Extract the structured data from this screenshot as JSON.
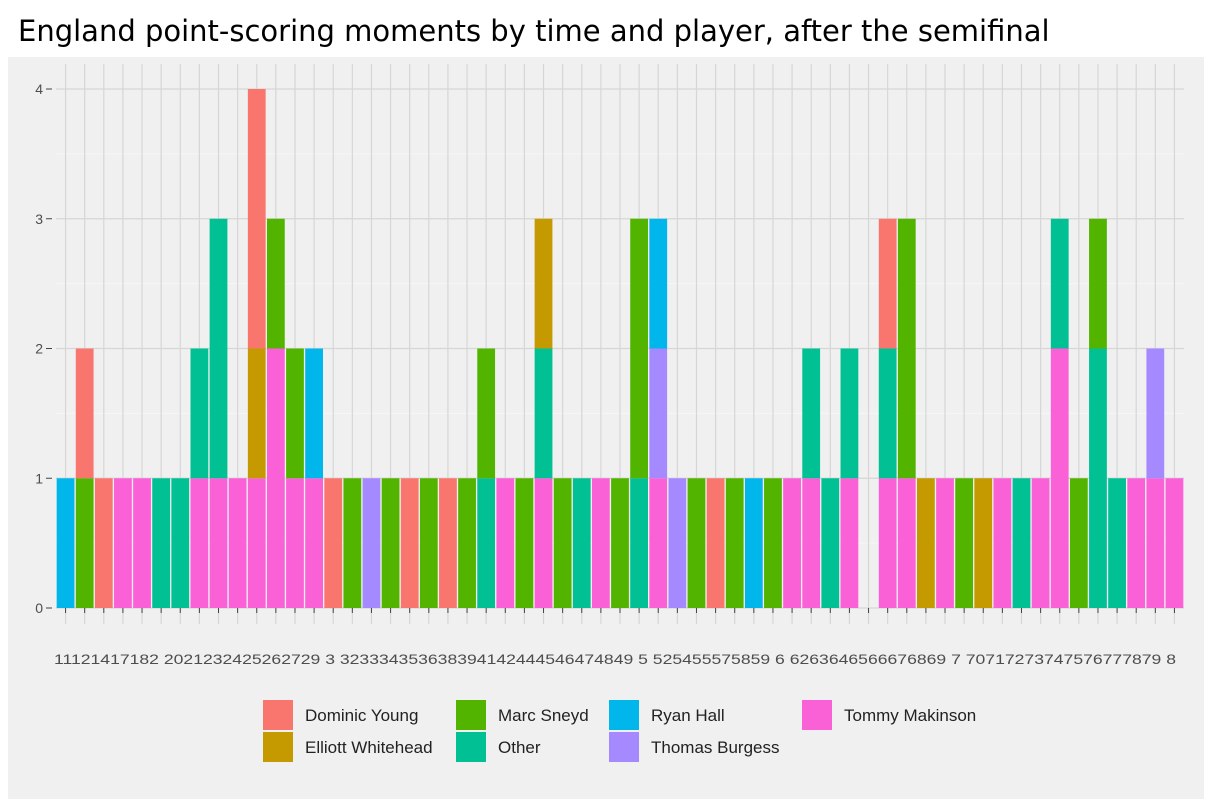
{
  "title": "England point-scoring moments by time and player, after the semifinal",
  "chart_data": {
    "type": "bar",
    "stacked": true,
    "title": "England point-scoring moments by time and player, after the semifinal",
    "xlabel": "",
    "ylabel": "",
    "ylim": [
      0,
      4
    ],
    "yticks": [
      0,
      1,
      2,
      3,
      4
    ],
    "grid": true,
    "legend_position": "bottom",
    "categories": [
      "1",
      "11",
      "12",
      "14",
      "17",
      "18",
      "2",
      "20",
      "21",
      "23",
      "24",
      "25",
      "26",
      "27",
      "29",
      "3",
      "32",
      "33",
      "34",
      "35",
      "36",
      "38",
      "39",
      "41",
      "42",
      "44",
      "45",
      "46",
      "47",
      "48",
      "49",
      "5",
      "52",
      "54",
      "55",
      "57",
      "58",
      "59",
      "6",
      "62",
      "63",
      "64",
      "65",
      "66",
      "67",
      "68",
      "69",
      "7",
      "70",
      "71",
      "72",
      "73",
      "74",
      "75",
      "76",
      "77",
      "78",
      "79",
      "8"
    ],
    "x_tick_text": "11121417182 202123242526272​9 3 32333435363839414244454647484​9 5 52545557585​9 6 62636465666​76869 7 7071727374757677787​9 8",
    "series": [
      {
        "name": "Dominic Young",
        "color": "#F8766D",
        "values": [
          0,
          1,
          1,
          0,
          0,
          0,
          0,
          0,
          0,
          0,
          2,
          0,
          0,
          0,
          1,
          0,
          0,
          0,
          1,
          0,
          1,
          0,
          0,
          0,
          0,
          0,
          0,
          0,
          0,
          0,
          0,
          0,
          0,
          0,
          1,
          0,
          0,
          0,
          0,
          0,
          0,
          0,
          0,
          1,
          0,
          0,
          0,
          0,
          0,
          0,
          0,
          0,
          0,
          0,
          0,
          0,
          0,
          0,
          0
        ]
      },
      {
        "name": "Elliott Whitehead",
        "color": "#C49A00",
        "values": [
          0,
          0,
          0,
          0,
          0,
          0,
          0,
          0,
          0,
          0,
          1,
          0,
          0,
          0,
          0,
          0,
          0,
          0,
          0,
          0,
          0,
          0,
          0,
          0,
          0,
          1,
          0,
          0,
          0,
          0,
          0,
          0,
          0,
          0,
          0,
          0,
          0,
          0,
          0,
          0,
          0,
          0,
          0,
          0,
          0,
          1,
          0,
          0,
          1,
          0,
          0,
          0,
          0,
          0,
          0,
          0,
          0,
          0,
          0
        ]
      },
      {
        "name": "Marc Sneyd",
        "color": "#53B400",
        "values": [
          0,
          1,
          0,
          0,
          0,
          0,
          0,
          0,
          0,
          0,
          0,
          1,
          1,
          0,
          0,
          1,
          0,
          1,
          0,
          1,
          0,
          1,
          1,
          0,
          1,
          0,
          1,
          0,
          0,
          1,
          2,
          0,
          0,
          1,
          0,
          1,
          0,
          1,
          0,
          0,
          0,
          0,
          0,
          0,
          2,
          0,
          0,
          1,
          0,
          0,
          0,
          0,
          0,
          1,
          1,
          0,
          0,
          0,
          0
        ]
      },
      {
        "name": "Other",
        "color": "#00C094",
        "values": [
          0,
          0,
          0,
          0,
          0,
          1,
          1,
          1,
          2,
          0,
          0,
          0,
          0,
          0,
          0,
          0,
          0,
          0,
          0,
          0,
          0,
          0,
          1,
          0,
          0,
          1,
          0,
          1,
          0,
          0,
          1,
          0,
          0,
          0,
          0,
          0,
          0,
          0,
          0,
          1,
          1,
          1,
          0,
          1,
          0,
          0,
          0,
          0,
          0,
          0,
          1,
          0,
          1,
          0,
          2,
          1,
          0,
          0,
          0
        ]
      },
      {
        "name": "Ryan Hall",
        "color": "#00B6EB",
        "values": [
          1,
          0,
          0,
          0,
          0,
          0,
          0,
          0,
          0,
          0,
          0,
          0,
          0,
          1,
          0,
          0,
          0,
          0,
          0,
          0,
          0,
          0,
          0,
          0,
          0,
          0,
          0,
          0,
          0,
          0,
          0,
          1,
          0,
          0,
          0,
          0,
          1,
          0,
          0,
          0,
          0,
          0,
          0,
          0,
          0,
          0,
          0,
          0,
          0,
          0,
          0,
          0,
          0,
          0,
          0,
          0,
          0,
          0,
          0
        ]
      },
      {
        "name": "Thomas Burgess",
        "color": "#A58AFF",
        "values": [
          0,
          0,
          0,
          0,
          0,
          0,
          0,
          0,
          0,
          0,
          0,
          0,
          0,
          0,
          0,
          0,
          1,
          0,
          0,
          0,
          0,
          0,
          0,
          0,
          0,
          0,
          0,
          0,
          0,
          0,
          0,
          1,
          1,
          0,
          0,
          0,
          0,
          0,
          0,
          0,
          0,
          0,
          0,
          0,
          0,
          0,
          0,
          0,
          0,
          0,
          0,
          0,
          0,
          0,
          0,
          0,
          0,
          1,
          0
        ]
      },
      {
        "name": "Tommy Makinson",
        "color": "#FB61D7",
        "values": [
          0,
          0,
          0,
          1,
          1,
          0,
          0,
          1,
          1,
          1,
          1,
          2,
          1,
          1,
          0,
          0,
          0,
          0,
          0,
          0,
          0,
          0,
          0,
          1,
          0,
          1,
          0,
          0,
          1,
          0,
          0,
          1,
          0,
          0,
          0,
          0,
          0,
          0,
          1,
          1,
          0,
          1,
          0,
          1,
          1,
          0,
          1,
          0,
          0,
          1,
          0,
          1,
          2,
          0,
          0,
          0,
          1,
          1,
          1
        ]
      }
    ]
  }
}
